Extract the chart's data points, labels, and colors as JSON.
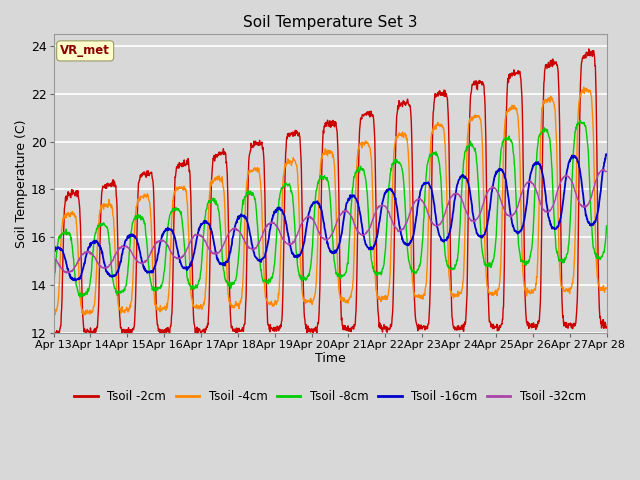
{
  "title": "Soil Temperature Set 3",
  "xlabel": "Time",
  "ylabel": "Soil Temperature (C)",
  "ylim": [
    12,
    24.5
  ],
  "background_color": "#d8d8d8",
  "plot_bg_color": "#d8d8d8",
  "grid_color": "#ffffff",
  "series": [
    {
      "label": "Tsoil -2cm",
      "color": "#cc0000"
    },
    {
      "label": "Tsoil -4cm",
      "color": "#ff8800"
    },
    {
      "label": "Tsoil -8cm",
      "color": "#00cc00"
    },
    {
      "label": "Tsoil -16cm",
      "color": "#0000cc"
    },
    {
      "label": "Tsoil -32cm",
      "color": "#aa44aa"
    }
  ],
  "xtick_labels": [
    "Apr 13",
    "Apr 14",
    "Apr 15",
    "Apr 16",
    "Apr 17",
    "Apr 18",
    "Apr 19",
    "Apr 20",
    "Apr 21",
    "Apr 22",
    "Apr 23",
    "Apr 24",
    "Apr 25",
    "Apr 26",
    "Apr 27",
    "Apr 28"
  ],
  "ytick_labels": [
    "12",
    "14",
    "16",
    "18",
    "20",
    "22",
    "24"
  ],
  "annotation_text": "VR_met",
  "annotation_color": "#8b0000",
  "annotation_bg": "#ffffcc"
}
